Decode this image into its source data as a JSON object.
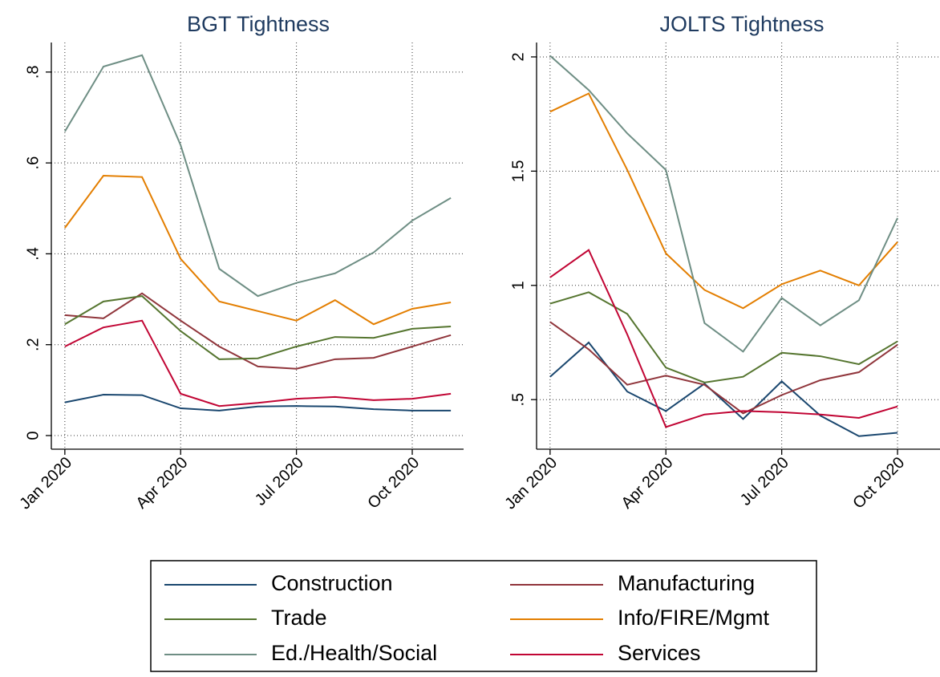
{
  "chart_data": [
    {
      "type": "line",
      "title": "BGT Tightness",
      "x": [
        0,
        1,
        2,
        3,
        4,
        5,
        6,
        7,
        8,
        9,
        10
      ],
      "xlim": [
        -0.35,
        10.33
      ],
      "xticks": [
        {
          "value": 0,
          "label": "Jan 2020"
        },
        {
          "value": 3,
          "label": "Apr 2020"
        },
        {
          "value": 6,
          "label": "Jul 2020"
        },
        {
          "value": 9,
          "label": "Oct 2020"
        }
      ],
      "ylim": [
        -0.03,
        0.865
      ],
      "yticks": [
        0,
        {
          "value": 0.2,
          "label": ".2"
        },
        {
          "value": 0.4,
          "label": ".4"
        },
        {
          "value": 0.6,
          "label": ".6"
        },
        {
          "value": 0.8,
          "label": ".8"
        }
      ],
      "grid": true,
      "series": [
        {
          "name": "Construction",
          "color": "#1a476f",
          "values": [
            0.073,
            0.09,
            0.089,
            0.06,
            0.055,
            0.064,
            0.065,
            0.064,
            0.058,
            0.055,
            0.055
          ]
        },
        {
          "name": "Manufacturing",
          "color": "#90353b",
          "values": [
            0.265,
            0.258,
            0.313,
            0.253,
            0.196,
            0.152,
            0.147,
            0.168,
            0.171,
            0.196,
            0.221
          ]
        },
        {
          "name": "Trade",
          "color": "#55752f",
          "values": [
            0.245,
            0.295,
            0.307,
            0.23,
            0.168,
            0.17,
            0.196,
            0.217,
            0.215,
            0.235,
            0.24
          ]
        },
        {
          "name": "Info/FIRE/Mgmt",
          "color": "#e37e00",
          "values": [
            0.457,
            0.572,
            0.569,
            0.389,
            0.295,
            0.274,
            0.253,
            0.298,
            0.245,
            0.279,
            0.293
          ]
        },
        {
          "name": "Ed./Health/Social",
          "color": "#6e8e84",
          "values": [
            0.669,
            0.812,
            0.837,
            0.639,
            0.367,
            0.307,
            0.336,
            0.357,
            0.403,
            0.473,
            0.523
          ]
        },
        {
          "name": "Services",
          "color": "#c10534",
          "values": [
            0.196,
            0.238,
            0.253,
            0.092,
            0.065,
            0.072,
            0.081,
            0.085,
            0.078,
            0.081,
            0.092
          ]
        }
      ]
    },
    {
      "type": "line",
      "title": "JOLTS Tightness",
      "x": [
        0,
        1,
        2,
        3,
        4,
        5,
        6,
        7,
        8,
        9
      ],
      "xlim": [
        -0.35,
        10.1
      ],
      "xticks": [
        {
          "value": 0,
          "label": "Jan 2020"
        },
        {
          "value": 3,
          "label": "Apr 2020"
        },
        {
          "value": 6,
          "label": "Jul 2020"
        },
        {
          "value": 9,
          "label": "Oct 2020"
        }
      ],
      "ylim": [
        0.283,
        2.063
      ],
      "yticks": [
        {
          "value": 0.5,
          "label": ".5"
        },
        1,
        1.5,
        2
      ],
      "grid": true,
      "series": [
        {
          "color": "#1a476f",
          "values": [
            0.6,
            0.75,
            0.535,
            0.45,
            0.57,
            0.415,
            0.58,
            0.43,
            0.34,
            0.355
          ]
        },
        {
          "color": "#90353b",
          "values": [
            0.84,
            0.72,
            0.565,
            0.605,
            0.565,
            0.44,
            0.52,
            0.585,
            0.62,
            0.74
          ]
        },
        {
          "color": "#55752f",
          "values": [
            0.92,
            0.97,
            0.875,
            0.64,
            0.575,
            0.6,
            0.705,
            0.69,
            0.655,
            0.755
          ]
        },
        {
          "color": "#e37e00",
          "values": [
            1.76,
            1.84,
            1.505,
            1.14,
            0.98,
            0.9,
            1.005,
            1.065,
            1.0,
            1.19
          ]
        },
        {
          "color": "#6e8e84",
          "values": [
            2.005,
            1.855,
            1.665,
            1.505,
            0.835,
            0.71,
            0.945,
            0.825,
            0.935,
            1.295
          ]
        },
        {
          "color": "#c10534",
          "values": [
            1.035,
            1.155,
            0.785,
            0.38,
            0.435,
            0.45,
            0.445,
            0.435,
            0.42,
            0.47
          ]
        }
      ]
    }
  ]
}
